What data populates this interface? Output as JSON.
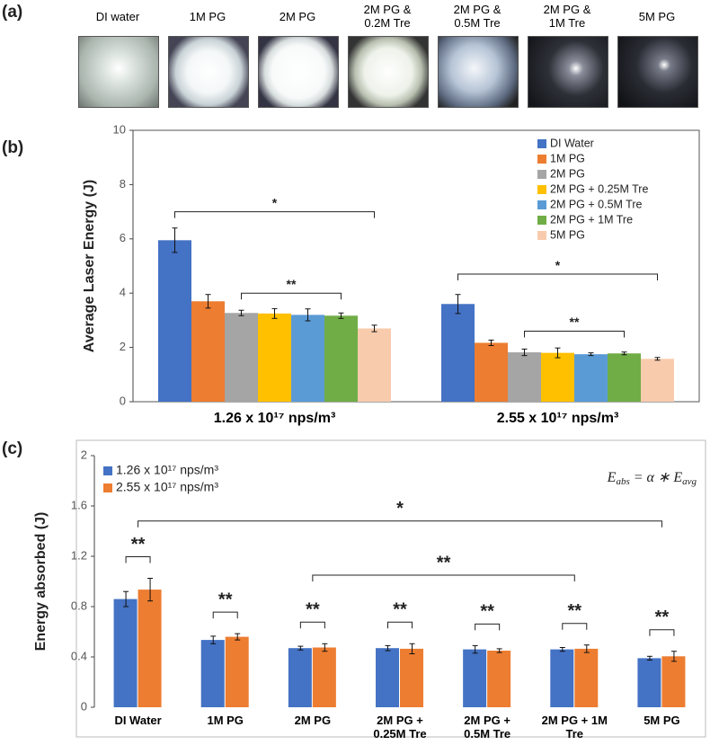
{
  "photos": {
    "label": "(a)",
    "captions": [
      "DI water",
      "1M PG",
      "2M PG",
      "2M PG &\n0.2M Tre",
      "2M PG &\n0.5M Tre",
      "2M PG &\n1M Tre",
      "5M PG"
    ]
  },
  "chart_data": [
    {
      "type": "bar",
      "panel_label": "(b)",
      "y_label": "Average Laser Energy (J)",
      "categories": [
        "1.26 x 10¹⁷ nps/m³",
        "2.55 x 10¹⁷ nps/m³"
      ],
      "series": [
        {
          "name": "DI Water",
          "color": "#4472c4",
          "values": [
            5.95,
            3.6
          ],
          "errors": [
            0.45,
            0.35
          ]
        },
        {
          "name": "1M PG",
          "color": "#ed7d31",
          "values": [
            3.7,
            2.17
          ],
          "errors": [
            0.25,
            0.1
          ]
        },
        {
          "name": "2M PG",
          "color": "#a5a5a5",
          "values": [
            3.27,
            1.82
          ],
          "errors": [
            0.1,
            0.12
          ]
        },
        {
          "name": "2M PG + 0.25M Tre",
          "color": "#ffc000",
          "values": [
            3.25,
            1.8
          ],
          "errors": [
            0.18,
            0.18
          ]
        },
        {
          "name": "2M PG + 0.5M Tre",
          "color": "#5b9bd5",
          "values": [
            3.2,
            1.75
          ],
          "errors": [
            0.22,
            0.05
          ]
        },
        {
          "name": "2M PG + 1M Tre",
          "color": "#70ad47",
          "values": [
            3.17,
            1.78
          ],
          "errors": [
            0.1,
            0.05
          ]
        },
        {
          "name": "5M PG",
          "color": "#f8cbad",
          "values": [
            2.7,
            1.58
          ],
          "errors": [
            0.12,
            0.05
          ]
        }
      ],
      "ylim": [
        0,
        10
      ],
      "yticks": [
        0,
        2,
        4,
        6,
        8,
        10
      ],
      "legend": "top-right",
      "annotations": [
        "*",
        "**",
        "*",
        "**"
      ]
    },
    {
      "type": "bar",
      "panel_label": "(c)",
      "y_label": "Energy absorbed (J)",
      "categories": [
        "DI Water",
        "1M PG",
        "2M PG",
        "2M PG +\n0.25M Tre",
        "2M PG +\n0.5M Tre",
        "2M PG + 1M\nTre",
        "5M PG"
      ],
      "series": [
        {
          "name": "1.26 x 10¹⁷ nps/m³",
          "color": "#4472c4",
          "values": [
            0.86,
            0.535,
            0.47,
            0.47,
            0.46,
            0.46,
            0.39
          ],
          "errors": [
            0.06,
            0.03,
            0.015,
            0.02,
            0.03,
            0.015,
            0.015
          ]
        },
        {
          "name": "2.55 x 10¹⁷ nps/m³",
          "color": "#ed7d31",
          "values": [
            0.935,
            0.56,
            0.475,
            0.465,
            0.45,
            0.465,
            0.405
          ],
          "errors": [
            0.09,
            0.025,
            0.03,
            0.04,
            0.015,
            0.03,
            0.04
          ]
        }
      ],
      "ylim": [
        0,
        2
      ],
      "yticks": [
        0,
        0.4,
        0.8,
        1.2,
        1.6,
        2
      ],
      "legend": "top-left",
      "formula": {
        "lhs": "E",
        "lhs_sub": "abs",
        "op": " = α ∗ ",
        "rhs": "E",
        "rhs_sub": "avg"
      },
      "annotations": [
        "**",
        "**",
        "**",
        "**",
        "**",
        "**",
        "**",
        "*",
        "**"
      ]
    }
  ]
}
